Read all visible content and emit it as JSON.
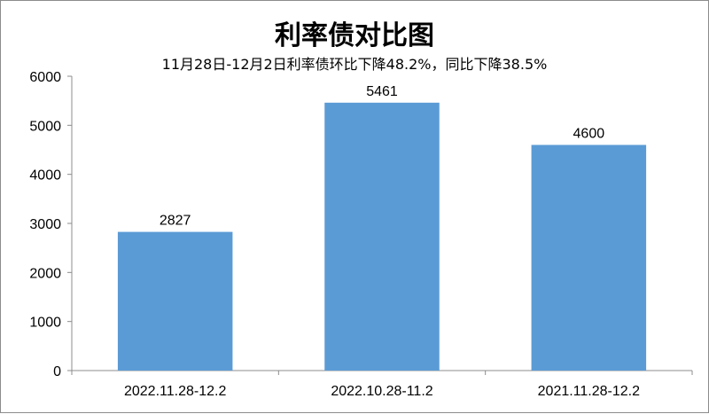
{
  "chart_data": {
    "type": "bar",
    "title": "利率债对比图",
    "subtitle": "11月28日-12月2日利率债环比下降48.2%，同比下降38.5%",
    "categories": [
      "2022.11.28-12.2",
      "2022.10.28-11.2",
      "2021.11.28-12.2"
    ],
    "values": [
      2827,
      5461,
      4600
    ],
    "data_labels": [
      "2827",
      "5461",
      "4600"
    ],
    "ylim": [
      0,
      6000
    ],
    "yticks": [
      0,
      1000,
      2000,
      3000,
      4000,
      5000,
      6000
    ],
    "ytick_labels": [
      "0",
      "1000",
      "2000",
      "3000",
      "4000",
      "5000",
      "6000"
    ],
    "xlabel": "",
    "ylabel": "",
    "grid": false,
    "legend": "none",
    "bar_color": "#5b9bd5"
  }
}
